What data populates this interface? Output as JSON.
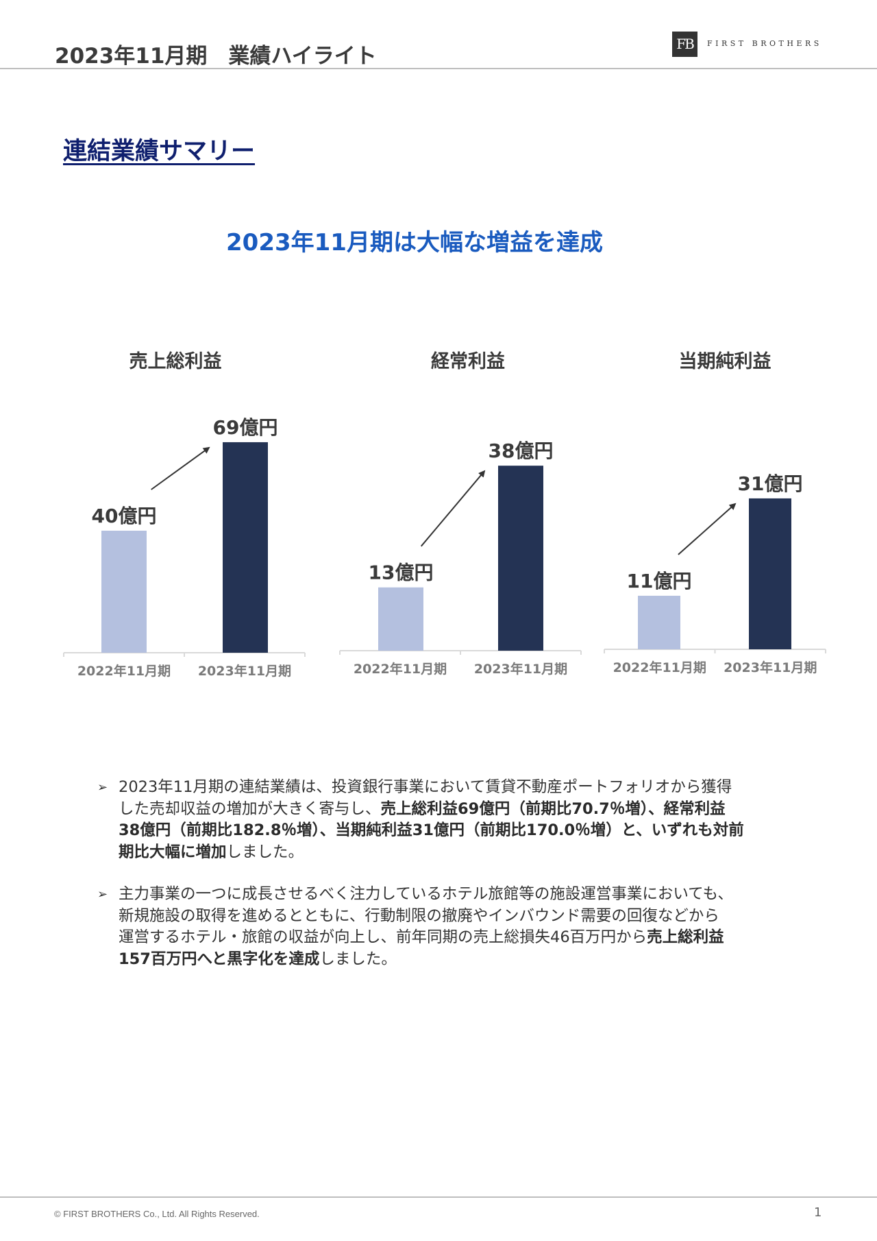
{
  "header": {
    "title": "2023年11月期　業績ハイライト",
    "logo_mark": "FB",
    "logo_text": "FIRST BROTHERS"
  },
  "section_title": "連結業績サマリー",
  "headline": "2023年11月期は大幅な増益を達成",
  "colors": {
    "prev_bar": "#b4c0df",
    "curr_bar": "#243354",
    "headline": "#1a5bbf",
    "section_title": "#0f1f6e"
  },
  "chart_data": [
    {
      "type": "bar",
      "title": "売上総利益",
      "categories": [
        "2022年11月期",
        "2023年11月期"
      ],
      "values": [
        40,
        69
      ],
      "data_labels": [
        "40億円",
        "69億円"
      ],
      "unit": "億円"
    },
    {
      "type": "bar",
      "title": "経常利益",
      "categories": [
        "2022年11月期",
        "2023年11月期"
      ],
      "values": [
        13,
        38
      ],
      "data_labels": [
        "13億円",
        "38億円"
      ],
      "unit": "億円"
    },
    {
      "type": "bar",
      "title": "当期純利益",
      "categories": [
        "2022年11月期",
        "2023年11月期"
      ],
      "values": [
        11,
        31
      ],
      "data_labels": [
        "11億円",
        "31億円"
      ],
      "unit": "億円"
    }
  ],
  "bullets": [
    {
      "marker": "➢",
      "lines": [
        [
          {
            "t": "2023年11月期の連結業績は、投資銀行事業において賃貸不動産ポートフォリオから獲得",
            "b": false
          }
        ],
        [
          {
            "t": "した売却収益の増加が大きく寄与し、",
            "b": false
          },
          {
            "t": "売上総利益69億円（前期比70.7％増）、経常利益",
            "b": true
          }
        ],
        [
          {
            "t": "38億円（前期比182.8％増）、当期純利益31億円（前期比170.0％増）と、いずれも対前",
            "b": true
          }
        ],
        [
          {
            "t": "期比大幅に増加",
            "b": true
          },
          {
            "t": "しました。",
            "b": false
          }
        ]
      ]
    },
    {
      "marker": "➢",
      "lines": [
        [
          {
            "t": "主力事業の一つに成長させるべく注力しているホテル旅館等の施設運営事業においても、",
            "b": false
          }
        ],
        [
          {
            "t": "新規施設の取得を進めるとともに、行動制限の撤廃やインバウンド需要の回復などから",
            "b": false
          }
        ],
        [
          {
            "t": "運営するホテル・旅館の収益が向上し、前年同期の売上総損失46百万円から",
            "b": false
          },
          {
            "t": "売上総利益",
            "b": true
          }
        ],
        [
          {
            "t": "157百万円へと黒字化を達成",
            "b": true
          },
          {
            "t": "しました。",
            "b": false
          }
        ]
      ]
    }
  ],
  "footer": {
    "copyright": "© FIRST BROTHERS Co., Ltd. All Rights Reserved.",
    "page": "1"
  }
}
